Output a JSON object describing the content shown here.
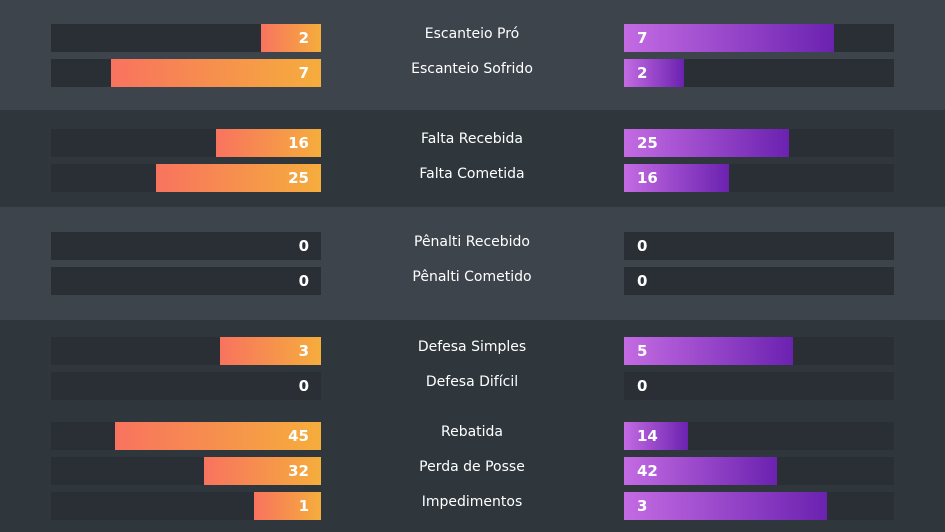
{
  "sections": [
    {
      "rows": [
        {
          "label": "Escanteio Pró",
          "home": 2,
          "away": 7
        },
        {
          "label": "Escanteio Sofrido",
          "home": 7,
          "away": 2
        }
      ]
    },
    {
      "rows": [
        {
          "label": "Falta Recebida",
          "home": 16,
          "away": 25
        },
        {
          "label": "Falta Cometida",
          "home": 25,
          "away": 16
        }
      ]
    },
    {
      "rows": [
        {
          "label": "Pênalti Recebido",
          "home": 0,
          "away": 0
        },
        {
          "label": "Pênalti Cometido",
          "home": 0,
          "away": 0
        }
      ]
    },
    {
      "rows": [
        {
          "label": "Defesa Simples",
          "home": 3,
          "away": 5
        },
        {
          "label": "Defesa Difícil",
          "home": 0,
          "away": 0
        },
        {
          "label": "Rebatida",
          "home": 45,
          "away": 14
        },
        {
          "label": "Perda de Posse",
          "home": 32,
          "away": 42
        },
        {
          "label": "Impedimentos",
          "home": 1,
          "away": 3
        }
      ]
    }
  ]
}
